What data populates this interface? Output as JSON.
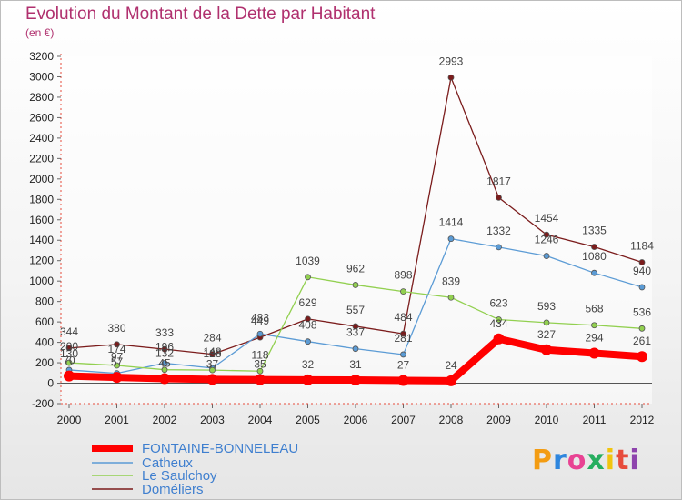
{
  "header": {
    "title": "Evolution du Montant de la Dette par Habitant",
    "subtitle": "(en €)"
  },
  "logo": {
    "text": "Proxiti",
    "colors": [
      "#f39c12",
      "#2e86de",
      "#e84393",
      "#27ae60",
      "#f1c40f",
      "#e74c3c",
      "#8e44ad"
    ]
  },
  "chart_data": {
    "type": "line",
    "title": "Evolution du Montant de la Dette par Habitant",
    "subtitle": "(en €)",
    "xlabel": "",
    "ylabel": "",
    "ylim": [
      -200,
      3200
    ],
    "yticks": [
      -200,
      0,
      200,
      400,
      600,
      800,
      1000,
      1200,
      1400,
      1600,
      1800,
      2000,
      2200,
      2400,
      2600,
      2800,
      3000,
      3200
    ],
    "categories": [
      "2000",
      "2001",
      "2002",
      "2003",
      "2004",
      "2005",
      "2006",
      "2007",
      "2008",
      "2009",
      "2010",
      "2011",
      "2012"
    ],
    "grid": false,
    "legend_position": "bottom-left",
    "series": [
      {
        "name": "FONTAINE-BONNELEAU",
        "color": "#ff0000",
        "values": [
          70,
          57,
          45,
          37,
          35,
          32,
          31,
          27,
          24,
          434,
          327,
          294,
          261
        ]
      },
      {
        "name": "Catheux",
        "color": "#5b9bd5",
        "values": [
          130,
          97,
          196,
          148,
          483,
          408,
          337,
          281,
          1414,
          1332,
          1246,
          1080,
          940
        ]
      },
      {
        "name": "Le Saulchoy",
        "color": "#92d050",
        "values": [
          200,
          174,
          132,
          128,
          118,
          1039,
          962,
          898,
          839,
          623,
          593,
          568,
          536
        ]
      },
      {
        "name": "Doméliers",
        "color": "#7b1c1c",
        "values": [
          344,
          380,
          333,
          284,
          449,
          629,
          557,
          484,
          2993,
          1817,
          1454,
          1335,
          1184
        ]
      }
    ]
  }
}
